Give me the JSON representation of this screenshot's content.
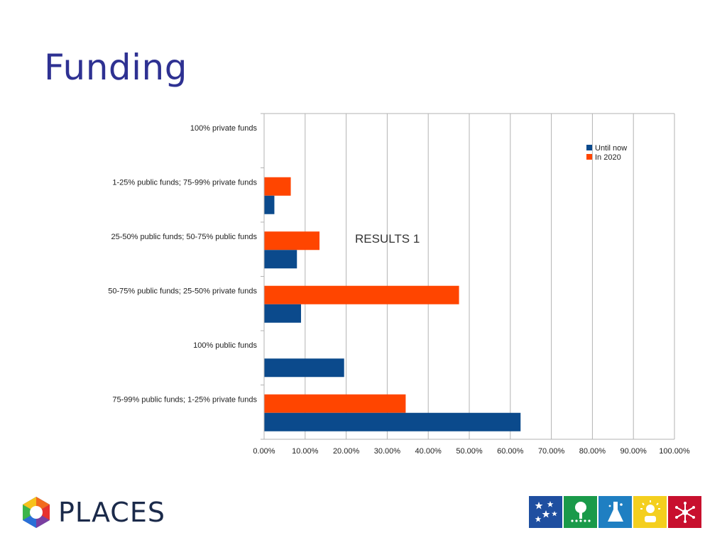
{
  "slide": {
    "title": "Funding"
  },
  "logo": {
    "text": "PLACES"
  },
  "icons": [
    {
      "name": "stars-icon",
      "color": "#1f4fa0"
    },
    {
      "name": "tree-people-icon",
      "color": "#1a9a4a"
    },
    {
      "name": "flask-icon",
      "color": "#1f7fc2"
    },
    {
      "name": "sun-person-icon",
      "color": "#f4cf1e"
    },
    {
      "name": "network-icon",
      "color": "#c8102e"
    }
  ],
  "chart_data": {
    "type": "bar",
    "orientation": "horizontal",
    "annotation": "RESULTS 1",
    "categories": [
      "100% private funds",
      "1-25% public funds; 75-99% private funds",
      "25-50% public funds; 50-75% public funds",
      "50-75% public funds; 25-50% private funds",
      "100% public funds",
      "75-99% public funds; 1-25% private funds"
    ],
    "series": [
      {
        "name": "Until now",
        "color": "#0b4a8c",
        "values": [
          0,
          2.5,
          8,
          9,
          19.5,
          62.5
        ]
      },
      {
        "name": "In 2020",
        "color": "#ff4500",
        "values": [
          0,
          6.5,
          13.5,
          47.5,
          0,
          34.5
        ]
      }
    ],
    "xlim": [
      0,
      100
    ],
    "xticks": [
      "0.00%",
      "10.00%",
      "20.00%",
      "30.00%",
      "40.00%",
      "50.00%",
      "60.00%",
      "70.00%",
      "80.00%",
      "90.00%",
      "100.00%"
    ],
    "grid": true,
    "legend_position": "top-right"
  }
}
